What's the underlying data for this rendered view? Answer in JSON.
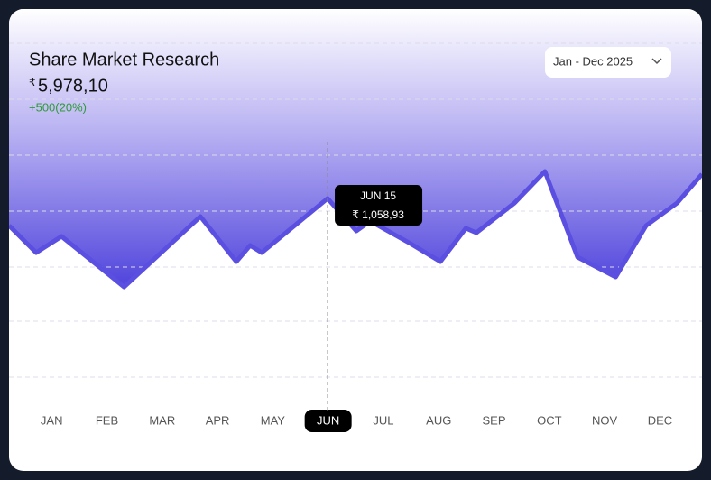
{
  "header": {
    "title": "Share Market Research",
    "currency": "₹",
    "amount": "5,978,10",
    "change": "+500(20%)",
    "range_select": "Jan - Dec 2025"
  },
  "chart_data": {
    "type": "area",
    "color": "#5a4fe0",
    "x": [
      0.23,
      0.72,
      1.18,
      2.31,
      3.69,
      4.34,
      4.59,
      4.8,
      5.99,
      6.51,
      6.76,
      7.49,
      8.03,
      8.49,
      8.68,
      9.37,
      9.92,
      10.51,
      11.2,
      11.75,
      12.31,
      12.76
    ],
    "values": [
      47.5,
      40,
      44.5,
      30.5,
      50,
      37.5,
      42,
      40,
      55,
      46,
      48.75,
      42.5,
      37.5,
      46.75,
      45.5,
      53.75,
      62.5,
      38.75,
      33.25,
      47.5,
      53.75,
      61.75
    ],
    "xlim": [
      0.23,
      12.76
    ],
    "ylim": [
      0,
      100
    ],
    "xticks": [
      {
        "value": 1,
        "label": "JAN"
      },
      {
        "value": 2,
        "label": "FEB"
      },
      {
        "value": 3,
        "label": "MAR"
      },
      {
        "value": 4,
        "label": "APR"
      },
      {
        "value": 5,
        "label": "MAY"
      },
      {
        "value": 6,
        "label": "JUN"
      },
      {
        "value": 7,
        "label": "JUL"
      },
      {
        "value": 8,
        "label": "AUG"
      },
      {
        "value": 9,
        "label": "SEP"
      },
      {
        "value": 10,
        "label": "OCT"
      },
      {
        "value": 11,
        "label": "NOV"
      },
      {
        "value": 12,
        "label": "DEC"
      }
    ],
    "highlight_tick": 5,
    "grid_lines": [
      98,
      82.5,
      67,
      51.5,
      36,
      21,
      5.5
    ],
    "cursor_x": 5.99,
    "tooltip": {
      "date": "JUN 15",
      "value": "₹ 1,058,93"
    }
  }
}
